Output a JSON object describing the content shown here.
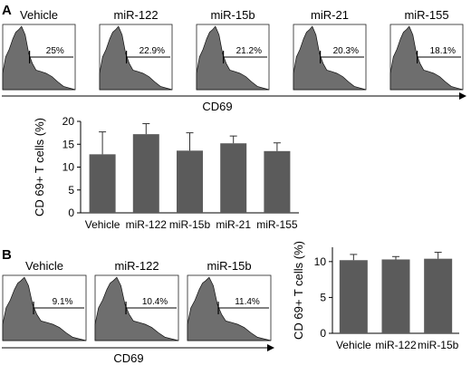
{
  "panel_a": {
    "letter": "A",
    "axis_label": "CD69",
    "histograms": [
      {
        "title": "Vehicle",
        "gate": "25%"
      },
      {
        "title": "miR-122",
        "gate": "22.9%"
      },
      {
        "title": "miR-15b",
        "gate": "21.2%"
      },
      {
        "title": "miR-21",
        "gate": "20.3%"
      },
      {
        "title": "miR-155",
        "gate": "18.1%"
      }
    ]
  },
  "panel_b": {
    "letter": "B",
    "axis_label": "CD69",
    "histograms": [
      {
        "title": "Vehicle",
        "gate": "9.1%"
      },
      {
        "title": "miR-122",
        "gate": "10.4%"
      },
      {
        "title": "miR-15b",
        "gate": "11.4%"
      }
    ]
  },
  "colors": {
    "bar": "#5b5b5b",
    "histogram_fill": "#6e6e6e"
  },
  "chart_data": [
    {
      "type": "bar",
      "panel": "A",
      "categories": [
        "Vehicle",
        "miR-122",
        "miR-15b",
        "miR-21",
        "miR-155"
      ],
      "values": [
        12.8,
        17.2,
        13.6,
        15.2,
        13.5
      ],
      "errors": [
        4.9,
        2.3,
        3.9,
        1.6,
        1.8
      ],
      "ylabel": "CD 69+  T cells (%)",
      "ylim": [
        0,
        20
      ],
      "yticks": [
        "0",
        "5",
        "10",
        "15",
        "20"
      ],
      "grid": false
    },
    {
      "type": "bar",
      "panel": "B",
      "categories": [
        "Vehicle",
        "miR-122",
        "miR-15b"
      ],
      "values": [
        10.2,
        10.3,
        10.4
      ],
      "errors": [
        0.8,
        0.4,
        0.9
      ],
      "ylabel": "CD 69+  T cells (%)",
      "ylim": [
        0,
        12
      ],
      "yticks": [
        "0",
        "5",
        "10"
      ],
      "grid": false
    }
  ]
}
